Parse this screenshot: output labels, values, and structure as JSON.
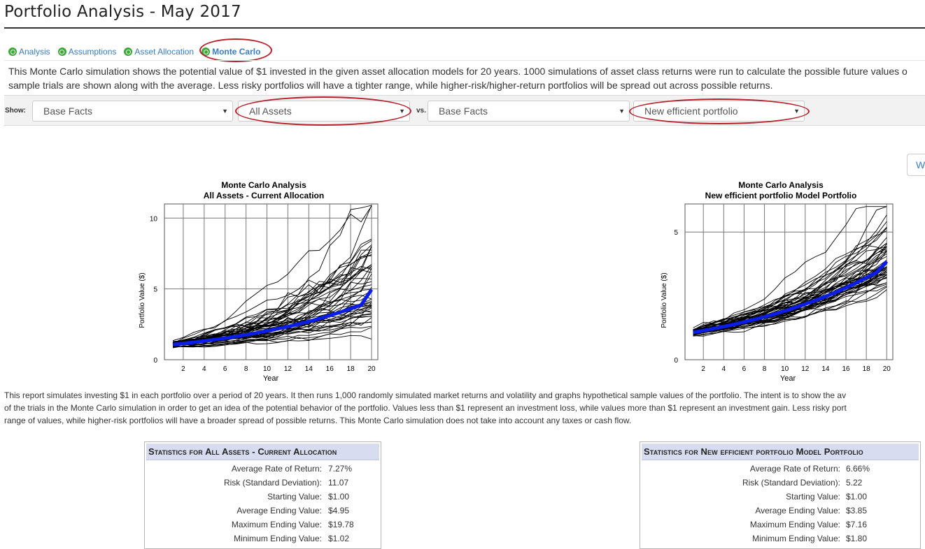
{
  "page": {
    "title": "Portfolio Analysis - May 2017"
  },
  "tabs": [
    {
      "label": "Analysis",
      "icon": "status-circle-icon"
    },
    {
      "label": "Assumptions",
      "icon": "status-circle-icon"
    },
    {
      "label": "Asset Allocation",
      "icon": "status-circle-icon"
    },
    {
      "label": "Monte Carlo",
      "icon": "status-circle-icon",
      "active": true
    }
  ],
  "intro": {
    "line1": "This Monte Carlo simulation shows the potential value of $1 invested in the given asset allocation models for 20 years. 1000 simulations of asset class returns were run to calculate the possible future values o",
    "line2": "sample trials are shown along with the average. Less risky portfolios will have a tighter range, while higher-risk/higher-return portfolios will be spread out across possible returns."
  },
  "showbar": {
    "show_label": "Show:",
    "vs_label": "vs.",
    "select1": "Base Facts",
    "select2": "All Assets",
    "select3": "Base Facts",
    "select4": "New efficient portfolio"
  },
  "side_button": {
    "label": "W"
  },
  "colors": {
    "accent": "#3c7cb8",
    "highlight": "#b8202a",
    "average_line": "#0a1ee8",
    "tab_icon": "#3aa935"
  },
  "charts": [
    {
      "title1": "Monte Carlo Analysis",
      "title2": "All Assets - Current Allocation",
      "ylabel": "Portfolio Value ($)",
      "xlabel": "Year"
    },
    {
      "title1": "Monte Carlo Analysis",
      "title2": "New efficient portfolio Model Portfolio",
      "ylabel": "Portfolio Value ($)",
      "xlabel": "Year"
    }
  ],
  "chart_data": [
    {
      "type": "line",
      "title": "Monte Carlo Analysis\nAll Assets - Current Allocation",
      "xlabel": "Year",
      "ylabel": "Portfolio Value ($)",
      "x": [
        1,
        2,
        3,
        4,
        5,
        6,
        7,
        8,
        9,
        10,
        11,
        12,
        13,
        14,
        15,
        16,
        17,
        18,
        19,
        20
      ],
      "xticks": [
        2,
        4,
        6,
        8,
        10,
        12,
        14,
        16,
        18,
        20
      ],
      "yticks": [
        0,
        5,
        10
      ],
      "xlim": [
        0.2,
        20.6
      ],
      "ylim": [
        0,
        11.0
      ],
      "grid": true,
      "series": [
        {
          "role": "average",
          "values": [
            1.07,
            1.15,
            1.23,
            1.32,
            1.42,
            1.52,
            1.64,
            1.76,
            1.89,
            2.03,
            2.18,
            2.34,
            2.52,
            2.7,
            2.9,
            3.12,
            3.35,
            3.6,
            3.86,
            4.95
          ]
        }
      ],
      "trials": {
        "count": 50,
        "min_end": 1.02,
        "max_end": 10.9
      }
    },
    {
      "type": "line",
      "title": "Monte Carlo Analysis\nNew efficient portfolio Model Portfolio",
      "xlabel": "Year",
      "ylabel": "Portfolio Value ($)",
      "x": [
        1,
        2,
        3,
        4,
        5,
        6,
        7,
        8,
        9,
        10,
        11,
        12,
        13,
        14,
        15,
        16,
        17,
        18,
        19,
        20
      ],
      "xticks": [
        2,
        4,
        6,
        8,
        10,
        12,
        14,
        16,
        18,
        20
      ],
      "yticks": [
        0,
        5
      ],
      "xlim": [
        0.2,
        20.6
      ],
      "ylim": [
        0,
        6.1
      ],
      "grid": true,
      "series": [
        {
          "role": "average",
          "values": [
            1.07,
            1.14,
            1.22,
            1.3,
            1.38,
            1.48,
            1.57,
            1.68,
            1.79,
            1.91,
            2.04,
            2.18,
            2.32,
            2.48,
            2.64,
            2.82,
            3.01,
            3.21,
            3.42,
            3.85
          ]
        }
      ],
      "trials": {
        "count": 50,
        "min_end": 1.8,
        "max_end": 6.1
      }
    }
  ],
  "report": {
    "line1": "This report simulates investing $1 in each portfolio over a period of 20 years. It then runs 1,000 randomly simulated market returns and volatility and graphs hypothetical sample values of the portfolio. The intent is to show the av",
    "line2": "of the trials in the Monte Carlo simulation in order to get an idea of the potential behavior of the portfolio. Values less than $1 represent an investment loss, while values more than $1 represent an investment gain. Less risky port",
    "line3": "range of values, while higher-risk portfolios will have a broader spread of possible returns. This Monte Carlo simulation does not take into account any taxes or cash flow."
  },
  "stats": [
    {
      "title": "Statistics for All Assets - Current Allocation",
      "rows": [
        {
          "k": "Average Rate of Return:",
          "v": "7.27%"
        },
        {
          "k": "Risk (Standard Deviation):",
          "v": "11.07"
        },
        {
          "k": "Starting Value:",
          "v": "$1.00"
        },
        {
          "k": "Average Ending Value:",
          "v": "$4.95"
        },
        {
          "k": "Maximum Ending Value:",
          "v": "$19.78"
        },
        {
          "k": "Minimum Ending Value:",
          "v": "$1.02"
        }
      ]
    },
    {
      "title": "Statistics for New efficient portfolio Model Portfolio",
      "rows": [
        {
          "k": "Average Rate of Return:",
          "v": "6.66%"
        },
        {
          "k": "Risk (Standard Deviation):",
          "v": "5.22"
        },
        {
          "k": "Starting Value:",
          "v": "$1.00"
        },
        {
          "k": "Average Ending Value:",
          "v": "$3.85"
        },
        {
          "k": "Maximum Ending Value:",
          "v": "$7.16"
        },
        {
          "k": "Minimum Ending Value:",
          "v": "$1.80"
        }
      ]
    }
  ]
}
